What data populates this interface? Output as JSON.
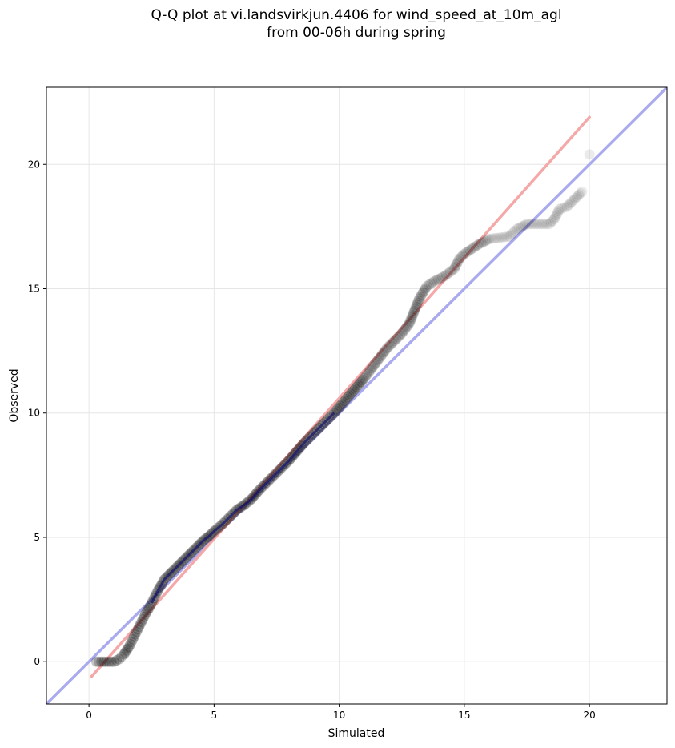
{
  "chart_data": {
    "type": "scatter",
    "title_line1": "Q-Q plot at vi.landsvirkjun.4406 for wind_speed_at_10m_agl",
    "title_line2": "from 00-06h during spring",
    "xlabel": "Simulated",
    "ylabel": "Observed",
    "xlim": [
      -1.7,
      23.1
    ],
    "ylim": [
      -1.7,
      23.1
    ],
    "xticks": [
      0,
      5,
      10,
      15,
      20
    ],
    "yticks": [
      0,
      5,
      10,
      15,
      20
    ],
    "grid": true,
    "reference_line": {
      "name": "",
      "color": "#aaaaee",
      "points": [
        [
          -1.7,
          -1.7
        ],
        [
          23.1,
          23.1
        ]
      ]
    },
    "fit_line": {
      "name": "",
      "color": "#f5a8a8",
      "points": [
        [
          0.1,
          -0.6
        ],
        [
          20.0,
          21.9
        ]
      ]
    },
    "colors": {
      "points": "#000000",
      "dense_overlay": "#00007a"
    },
    "series": [
      {
        "values": [
          [
            0.3,
            0.0
          ],
          [
            0.5,
            0.0
          ],
          [
            0.7,
            0.0
          ],
          [
            0.8,
            0.0
          ],
          [
            0.9,
            0.0
          ],
          [
            1.0,
            0.0
          ],
          [
            1.1,
            0.05
          ],
          [
            1.2,
            0.1
          ],
          [
            1.3,
            0.2
          ],
          [
            1.4,
            0.3
          ],
          [
            1.5,
            0.45
          ],
          [
            1.6,
            0.6
          ],
          [
            1.7,
            0.8
          ],
          [
            1.8,
            1.0
          ],
          [
            1.9,
            1.2
          ],
          [
            2.0,
            1.4
          ],
          [
            2.1,
            1.6
          ],
          [
            2.2,
            1.8
          ],
          [
            2.3,
            2.0
          ],
          [
            2.4,
            2.15
          ],
          [
            2.5,
            2.35
          ],
          [
            2.6,
            2.55
          ],
          [
            2.7,
            2.75
          ],
          [
            2.8,
            2.95
          ],
          [
            2.9,
            3.1
          ],
          [
            3.0,
            3.3
          ],
          [
            3.2,
            3.5
          ],
          [
            3.4,
            3.7
          ],
          [
            3.6,
            3.9
          ],
          [
            3.8,
            4.1
          ],
          [
            4.0,
            4.3
          ],
          [
            4.2,
            4.5
          ],
          [
            4.4,
            4.7
          ],
          [
            4.6,
            4.9
          ],
          [
            4.8,
            5.05
          ],
          [
            5.0,
            5.25
          ],
          [
            5.3,
            5.5
          ],
          [
            5.6,
            5.8
          ],
          [
            5.9,
            6.1
          ],
          [
            6.2,
            6.3
          ],
          [
            6.5,
            6.55
          ],
          [
            6.8,
            6.9
          ],
          [
            7.1,
            7.2
          ],
          [
            7.4,
            7.5
          ],
          [
            7.7,
            7.8
          ],
          [
            8.0,
            8.1
          ],
          [
            8.3,
            8.45
          ],
          [
            8.6,
            8.8
          ],
          [
            8.9,
            9.1
          ],
          [
            9.2,
            9.4
          ],
          [
            9.5,
            9.7
          ],
          [
            9.8,
            10.0
          ],
          [
            10.1,
            10.35
          ],
          [
            10.4,
            10.7
          ],
          [
            10.7,
            11.05
          ],
          [
            11.0,
            11.4
          ],
          [
            11.3,
            11.8
          ],
          [
            11.6,
            12.2
          ],
          [
            11.9,
            12.6
          ],
          [
            12.2,
            12.9
          ],
          [
            12.5,
            13.2
          ],
          [
            12.8,
            13.6
          ],
          [
            13.0,
            14.1
          ],
          [
            13.2,
            14.6
          ],
          [
            13.5,
            15.1
          ],
          [
            13.8,
            15.3
          ],
          [
            14.2,
            15.5
          ],
          [
            14.6,
            15.8
          ],
          [
            14.8,
            16.2
          ],
          [
            15.0,
            16.4
          ],
          [
            15.3,
            16.6
          ],
          [
            15.6,
            16.8
          ],
          [
            16.0,
            17.0
          ],
          [
            16.8,
            17.1
          ],
          [
            17.1,
            17.4
          ],
          [
            17.5,
            17.6
          ],
          [
            18.0,
            17.6
          ],
          [
            18.4,
            17.6
          ],
          [
            18.6,
            17.8
          ],
          [
            18.8,
            18.2
          ],
          [
            19.1,
            18.3
          ],
          [
            19.7,
            18.9
          ],
          [
            20.0,
            20.4
          ]
        ]
      }
    ]
  }
}
